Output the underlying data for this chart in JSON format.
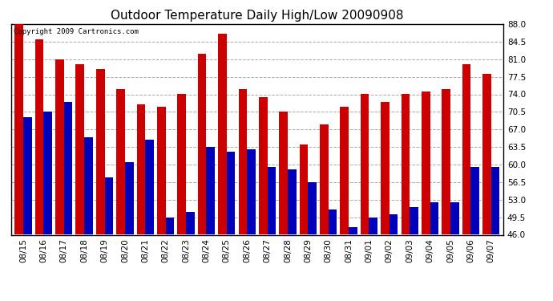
{
  "title": "Outdoor Temperature Daily High/Low 20090908",
  "copyright": "Copyright 2009 Cartronics.com",
  "dates": [
    "08/15",
    "08/16",
    "08/17",
    "08/18",
    "08/19",
    "08/20",
    "08/21",
    "08/22",
    "08/23",
    "08/24",
    "08/25",
    "08/26",
    "08/27",
    "08/28",
    "08/29",
    "08/30",
    "08/31",
    "09/01",
    "09/02",
    "09/03",
    "09/04",
    "09/05",
    "09/06",
    "09/07"
  ],
  "highs": [
    88.0,
    85.0,
    81.0,
    80.0,
    79.0,
    75.0,
    72.0,
    71.5,
    74.0,
    82.0,
    86.0,
    75.0,
    73.5,
    70.5,
    64.0,
    68.0,
    71.5,
    74.0,
    72.5,
    74.0,
    74.5,
    75.0,
    80.0,
    78.0
  ],
  "lows": [
    69.5,
    70.5,
    72.5,
    65.5,
    57.5,
    60.5,
    65.0,
    49.5,
    50.5,
    63.5,
    62.5,
    63.0,
    59.5,
    59.0,
    56.5,
    51.0,
    47.5,
    49.5,
    50.0,
    51.5,
    52.5,
    52.5,
    59.5,
    59.5
  ],
  "ylim": [
    46.0,
    88.0
  ],
  "yticks": [
    46.0,
    49.5,
    53.0,
    56.5,
    60.0,
    63.5,
    67.0,
    70.5,
    74.0,
    77.5,
    81.0,
    84.5,
    88.0
  ],
  "high_color": "#cc0000",
  "low_color": "#0000bb",
  "bg_color": "#ffffff",
  "grid_color": "#aaaaaa",
  "bar_width": 0.42,
  "title_fontsize": 11,
  "tick_fontsize": 7.5,
  "copyright_fontsize": 6.5
}
